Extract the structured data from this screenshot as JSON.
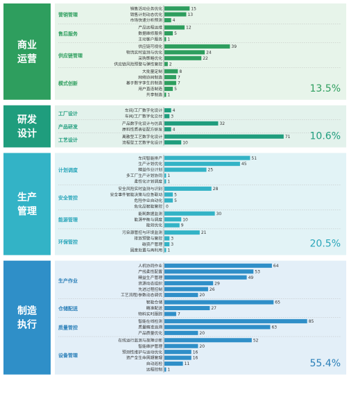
{
  "chart_data": {
    "type": "bar",
    "orientation": "horizontal",
    "sections": [
      {
        "name": "商业运营",
        "color": "#2e9e5e",
        "light": "#e7f4ea",
        "dark": "#2e9e5e",
        "percent": "13.5%",
        "groups": [
          {
            "name": "营销管理",
            "items": [
              {
                "label": "销售活动业务优化",
                "value": 15
              },
              {
                "label": "销售计划动态优化",
                "value": 13
              },
              {
                "label": "市场快速分析预测",
                "value": 4
              }
            ]
          },
          {
            "name": "售后服务",
            "items": [
              {
                "label": "产品远程运维",
                "value": 12
              },
              {
                "label": "数据维修服务",
                "value": 5
              },
              {
                "label": "主动客户服务",
                "value": 1
              }
            ]
          },
          {
            "name": "供应链管理",
            "items": [
              {
                "label": "供应链可视化",
                "value": 39
              },
              {
                "label": "物流实时监测与优化",
                "value": 24
              },
              {
                "label": "采购策略优化",
                "value": 22
              },
              {
                "label": "供应链风险预警与弹性管控",
                "value": 2
              }
            ]
          },
          {
            "name": "模式创新",
            "items": [
              {
                "label": "大批量定制",
                "value": 8
              },
              {
                "label": "网络协同制造",
                "value": 7
              },
              {
                "label": "基于数字孪生的制造",
                "value": 7
              },
              {
                "label": "用户直连制造",
                "value": 5
              },
              {
                "label": "共享制造",
                "value": 1
              }
            ]
          }
        ]
      },
      {
        "name": "研发设计",
        "color": "#1f9d7d",
        "light": "#e3f2ec",
        "dark": "#1f9d7d",
        "percent": "10.6%",
        "groups": [
          {
            "name": "工厂设计",
            "items": [
              {
                "label": "车间/工厂数字化设计",
                "value": 4
              },
              {
                "label": "车间/工厂数字化交付",
                "value": 3
              }
            ]
          },
          {
            "name": "产品研发",
            "items": [
              {
                "label": "产品数字化设计与仿真",
                "value": 32
              },
              {
                "label": "原料性质表征配方研发",
                "value": 4
              }
            ]
          },
          {
            "name": "工艺设计",
            "items": [
              {
                "label": "离散型工艺数字化设计",
                "value": 71
              },
              {
                "label": "流程型工艺数字化设计",
                "value": 10
              }
            ]
          }
        ]
      },
      {
        "name": "生产管理",
        "color": "#33b3c6",
        "light": "#e2f3f6",
        "dark": "#2aa6ba",
        "percent": "20.5%",
        "groups": [
          {
            "name": "计划调度",
            "items": [
              {
                "label": "车间智能排产",
                "value": 51
              },
              {
                "label": "生产计划优化",
                "value": 45
              },
              {
                "label": "精益作业计划",
                "value": 25
              },
              {
                "label": "多工厂生产计划协同",
                "value": 1
              },
              {
                "label": "柔性化计划调度",
                "value": 1
              }
            ]
          },
          {
            "name": "安全管控",
            "items": [
              {
                "label": "安全风险实时监测与识别",
                "value": 28
              },
              {
                "label": "安全事件智能决策与应急联动",
                "value": 5
              },
              {
                "label": "危险作业自动化",
                "value": 5
              },
              {
                "label": "危化品智能管控",
                "value": 0
              }
            ]
          },
          {
            "name": "能源管理",
            "items": [
              {
                "label": "能耗数据监测",
                "value": 30
              },
              {
                "label": "能源平衡与调度",
                "value": 10
              },
              {
                "label": "能效优化",
                "value": 9
              }
            ]
          },
          {
            "name": "环保管控",
            "items": [
              {
                "label": "污染源管控与环境监测",
                "value": 21
              },
              {
                "label": "排放预警与管控",
                "value": 3
              },
              {
                "label": "碳资产管理",
                "value": 3
              },
              {
                "label": "固废处置与再利用",
                "value": 1
              }
            ]
          }
        ]
      },
      {
        "name": "制造执行",
        "color": "#2f8fc8",
        "light": "#e3eff8",
        "dark": "#2a7fb8",
        "percent": "55.4%",
        "groups": [
          {
            "name": "生产作业",
            "items": [
              {
                "label": "人机协同作业",
                "value": 64
              },
              {
                "label": "产线柔性配置",
                "value": 53
              },
              {
                "label": "精益生产管理",
                "value": 49
              },
              {
                "label": "资源动态组织",
                "value": 29
              },
              {
                "label": "先进过程控制",
                "value": 26
              },
              {
                "label": "工艺流程/参数动态调优",
                "value": 20
              }
            ]
          },
          {
            "name": "仓储配送",
            "items": [
              {
                "label": "智能仓储",
                "value": 65
              },
              {
                "label": "精准配送",
                "value": 27
              },
              {
                "label": "物料实时跟踪",
                "value": 7
              }
            ]
          },
          {
            "name": "质量管控",
            "items": [
              {
                "label": "智能在线检测",
                "value": 85
              },
              {
                "label": "质量精准追溯",
                "value": 63
              },
              {
                "label": "产品质量优化",
                "value": 20
              }
            ]
          },
          {
            "name": "设备管理",
            "items": [
              {
                "label": "在线运行监测与故障诊断",
                "value": 52
              },
              {
                "label": "智能维护管理",
                "value": 20
              },
              {
                "label": "预测性维护与运动优化",
                "value": 16
              },
              {
                "label": "资产全生命周期管理",
                "value": 16
              },
              {
                "label": "自动巡检",
                "value": 11
              },
              {
                "label": "远程控制",
                "value": 1
              }
            ]
          }
        ]
      }
    ]
  }
}
